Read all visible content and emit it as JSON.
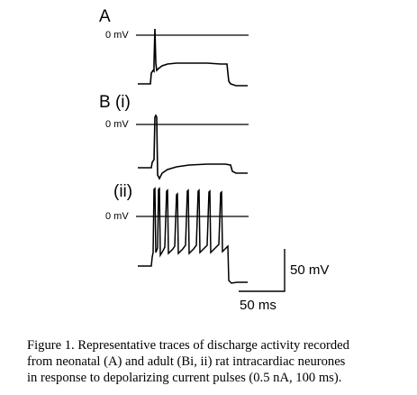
{
  "panels": {
    "a": {
      "label": "A",
      "zero_label": "0 mV"
    },
    "b": {
      "label": "B (i)",
      "zero_label": "0 mV"
    },
    "b2": {
      "label": "(ii)",
      "zero_label": "0 mV"
    }
  },
  "scale_bar": {
    "voltage": "50 mV",
    "time": "50 ms"
  },
  "caption": {
    "line1": "Figure 1. Representative traces of discharge activity recorded",
    "line2": "from neonatal (A) and adult (Bi, ii) rat intracardiac neurones",
    "line3": "in response to depolarizing current pulses (0.5 nA, 100 ms)."
  }
}
